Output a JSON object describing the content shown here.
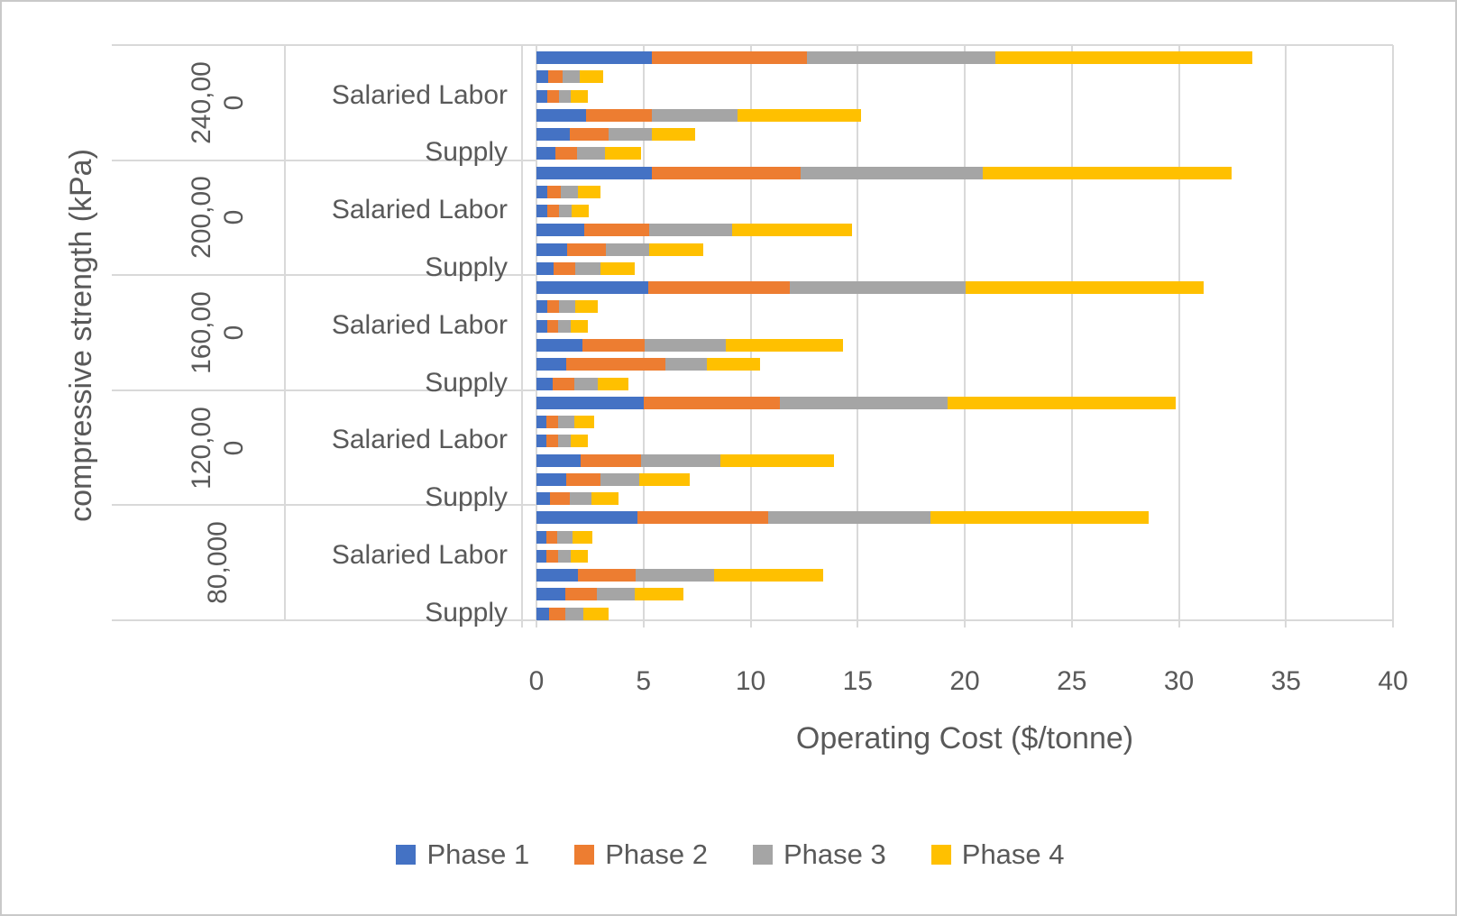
{
  "axes": {
    "x_title": "Operating Cost ($/tonne)",
    "y_title": "compressive strength (kPa)",
    "x_ticks": [
      0,
      5,
      10,
      15,
      20,
      25,
      30,
      35,
      40
    ],
    "x_max": 40,
    "grid": true
  },
  "legend": [
    {
      "name": "Phase 1",
      "color": "#4472C4"
    },
    {
      "name": "Phase 2",
      "color": "#ED7D31"
    },
    {
      "name": "Phase 3",
      "color": "#A5A5A5"
    },
    {
      "name": "Phase 4",
      "color": "#FFC000"
    }
  ],
  "colors": {
    "text": "#595959",
    "gridline": "#d9d9d9",
    "frame": "#c9c9c9"
  },
  "chart_data": {
    "type": "bar",
    "orientation": "horizontal",
    "stacked": true,
    "title": "",
    "xlabel": "Operating Cost ($/tonne)",
    "ylabel": "compressive strength (kPa)",
    "xlim": [
      0,
      40
    ],
    "legend_position": "bottom",
    "series_names": [
      "Phase 1",
      "Phase 2",
      "Phase 3",
      "Phase 4"
    ],
    "groups": [
      {
        "label": "240,000",
        "rows": [
          {
            "label": "",
            "values": [
              5.4,
              7.25,
              8.8,
              12.0
            ]
          },
          {
            "label": "",
            "values": [
              0.55,
              0.65,
              0.8,
              1.1
            ]
          },
          {
            "label": "Salaried Labor",
            "values": [
              0.5,
              0.55,
              0.55,
              0.8
            ]
          },
          {
            "label": "",
            "values": [
              2.3,
              3.1,
              4.0,
              5.75
            ]
          },
          {
            "label": "",
            "values": [
              1.55,
              1.8,
              2.05,
              2.0
            ]
          },
          {
            "label": "Supply",
            "values": [
              0.9,
              1.0,
              1.3,
              1.7
            ]
          }
        ]
      },
      {
        "label": "200,000",
        "rows": [
          {
            "label": "",
            "values": [
              5.4,
              6.95,
              8.5,
              11.6
            ]
          },
          {
            "label": "",
            "values": [
              0.5,
              0.65,
              0.8,
              1.05
            ]
          },
          {
            "label": "Salaried Labor",
            "values": [
              0.5,
              0.55,
              0.6,
              0.8
            ]
          },
          {
            "label": "",
            "values": [
              2.25,
              3.0,
              3.9,
              5.6
            ]
          },
          {
            "label": "",
            "values": [
              1.45,
              1.8,
              2.0,
              2.55
            ]
          },
          {
            "label": "Supply",
            "values": [
              0.8,
              1.0,
              1.2,
              1.6
            ]
          }
        ]
      },
      {
        "label": "160,000",
        "rows": [
          {
            "label": "",
            "values": [
              5.2,
              6.65,
              8.2,
              11.1
            ]
          },
          {
            "label": "",
            "values": [
              0.5,
              0.55,
              0.75,
              1.05
            ]
          },
          {
            "label": "Salaried Labor",
            "values": [
              0.5,
              0.5,
              0.6,
              0.8
            ]
          },
          {
            "label": "",
            "values": [
              2.15,
              2.9,
              3.8,
              5.45
            ]
          },
          {
            "label": "",
            "values": [
              1.4,
              4.6,
              1.95,
              2.5
            ]
          },
          {
            "label": "Supply",
            "values": [
              0.75,
              1.0,
              1.1,
              1.45
            ]
          }
        ]
      },
      {
        "label": "120,000",
        "rows": [
          {
            "label": "",
            "values": [
              5.0,
              6.35,
              7.85,
              10.65
            ]
          },
          {
            "label": "",
            "values": [
              0.45,
              0.55,
              0.75,
              0.95
            ]
          },
          {
            "label": "Salaried Labor",
            "values": [
              0.45,
              0.55,
              0.6,
              0.8
            ]
          },
          {
            "label": "",
            "values": [
              2.05,
              2.85,
              3.7,
              5.3
            ]
          },
          {
            "label": "",
            "values": [
              1.4,
              1.6,
              1.8,
              2.35
            ]
          },
          {
            "label": "Supply",
            "values": [
              0.65,
              0.9,
              1.0,
              1.3
            ]
          }
        ]
      },
      {
        "label": "80,000",
        "rows": [
          {
            "label": "",
            "values": [
              4.7,
              6.1,
              7.6,
              10.2
            ]
          },
          {
            "label": "",
            "values": [
              0.45,
              0.5,
              0.75,
              0.9
            ]
          },
          {
            "label": "Salaried Labor",
            "values": [
              0.45,
              0.55,
              0.6,
              0.8
            ]
          },
          {
            "label": "",
            "values": [
              1.95,
              2.7,
              3.65,
              5.1
            ]
          },
          {
            "label": "",
            "values": [
              1.35,
              1.45,
              1.8,
              2.25
            ]
          },
          {
            "label": "Supply",
            "values": [
              0.6,
              0.75,
              0.85,
              1.15
            ]
          }
        ]
      }
    ]
  }
}
